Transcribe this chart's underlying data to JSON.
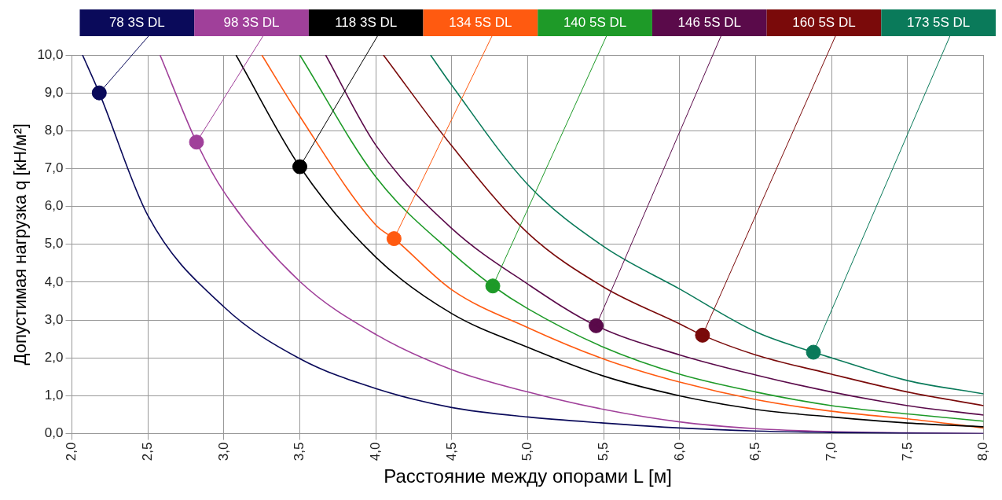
{
  "chart_data": {
    "type": "line",
    "xlabel": "Расстояние между опорами L [м]",
    "ylabel": "Допустимая нагрузка q [кН/м²]",
    "xlim": [
      2,
      8
    ],
    "xticks": [
      {
        "value": 2,
        "label": "2,0"
      },
      {
        "value": 2.5,
        "label": "2,5"
      },
      {
        "value": 3,
        "label": "3,0"
      },
      {
        "value": 3.5,
        "label": "3,5"
      },
      {
        "value": 4,
        "label": "4,0"
      },
      {
        "value": 4.5,
        "label": "4,5"
      },
      {
        "value": 5,
        "label": "5,0"
      },
      {
        "value": 5.5,
        "label": "5,5"
      },
      {
        "value": 6,
        "label": "6,0"
      },
      {
        "value": 6.5,
        "label": "6,5"
      },
      {
        "value": 7,
        "label": "7,0"
      },
      {
        "value": 7.5,
        "label": "7,5"
      },
      {
        "value": 8,
        "label": "8,0"
      }
    ],
    "ylim": [
      0,
      10
    ],
    "yticks": [
      {
        "value": 0,
        "label": "0,0"
      },
      {
        "value": 1,
        "label": "1,0"
      },
      {
        "value": 2,
        "label": "2,0"
      },
      {
        "value": 3,
        "label": "3,0"
      },
      {
        "value": 4,
        "label": "4,0"
      },
      {
        "value": 5,
        "label": "5,0"
      },
      {
        "value": 6,
        "label": "6,0"
      },
      {
        "value": 7,
        "label": "7,0"
      },
      {
        "value": 8,
        "label": "8,0"
      },
      {
        "value": 9,
        "label": "9,0"
      },
      {
        "value": 10,
        "label": "10,0"
      }
    ],
    "grid": true,
    "legend": "top",
    "marker": "none",
    "line_style": "solid",
    "series": [
      {
        "name": "78 3S DL",
        "color": "#0a0a5a",
        "x": [
          2.07,
          2.18,
          2.5,
          3.0,
          3.5,
          4.0,
          4.5,
          5.0,
          5.5,
          6.0,
          6.5,
          7.0,
          7.5,
          8.0
        ],
        "values": [
          10,
          9.0,
          5.76,
          3.35,
          1.98,
          1.19,
          0.69,
          0.44,
          0.28,
          0.15,
          0.07,
          0.03,
          0.01,
          0
        ]
      },
      {
        "name": "98 3S DL",
        "color": "#a0409a",
        "x": [
          2.58,
          2.82,
          3.0,
          3.5,
          4.0,
          4.5,
          5.0,
          5.5,
          6.0,
          6.5,
          7.0,
          7.5,
          8.0
        ],
        "values": [
          10,
          7.7,
          6.39,
          4.02,
          2.62,
          1.69,
          1.1,
          0.64,
          0.31,
          0.13,
          0.05,
          0.02,
          0
        ]
      },
      {
        "name": "118 3S DL",
        "color": "#000000",
        "x": [
          3.08,
          3.5,
          4.0,
          4.5,
          5.0,
          5.5,
          6.0,
          6.5,
          7.0,
          7.5,
          8.0
        ],
        "values": [
          10,
          7.05,
          4.66,
          3.17,
          2.28,
          1.52,
          1.0,
          0.64,
          0.44,
          0.28,
          0.18
        ]
      },
      {
        "name": "134 5S DL",
        "color": "#ff5a10",
        "x": [
          3.25,
          3.5,
          4.0,
          4.12,
          4.5,
          5.0,
          5.5,
          6.0,
          6.5,
          7.0,
          7.5,
          8.0
        ],
        "values": [
          10,
          8.38,
          5.51,
          5.15,
          3.8,
          2.8,
          1.97,
          1.36,
          0.9,
          0.59,
          0.39,
          0.15
        ]
      },
      {
        "name": "140 5S DL",
        "color": "#1e9a28",
        "x": [
          3.5,
          4.0,
          4.5,
          4.77,
          5.0,
          5.5,
          6.0,
          6.5,
          7.0,
          7.5,
          8.0
        ],
        "values": [
          10,
          6.78,
          4.78,
          3.9,
          3.3,
          2.28,
          1.57,
          1.1,
          0.74,
          0.52,
          0.33
        ]
      },
      {
        "name": "146 5S DL",
        "color": "#5a0a4a",
        "x": [
          3.67,
          4.0,
          4.5,
          5.0,
          5.45,
          6.0,
          6.5,
          7.0,
          7.5,
          8.0
        ],
        "values": [
          10,
          7.62,
          5.42,
          3.95,
          2.85,
          2.08,
          1.55,
          1.1,
          0.74,
          0.49
        ]
      },
      {
        "name": "160 5S DL",
        "color": "#7a0a0a",
        "x": [
          4.05,
          4.5,
          5.0,
          5.5,
          6.0,
          6.15,
          6.5,
          7.0,
          7.5,
          8.0
        ],
        "values": [
          10,
          7.6,
          5.3,
          3.87,
          2.9,
          2.6,
          2.08,
          1.57,
          1.1,
          0.74
        ]
      },
      {
        "name": "173 5S DL",
        "color": "#0a7a5a",
        "x": [
          4.36,
          4.5,
          5.0,
          5.5,
          6.0,
          6.5,
          6.88,
          7.0,
          7.5,
          8.0
        ],
        "values": [
          10,
          9.2,
          6.58,
          4.94,
          3.82,
          2.69,
          2.15,
          2.0,
          1.4,
          1.05
        ]
      },
      {
        "type": "scatter",
        "marker": "circle",
        "color": "#0a0a5a",
        "x": [
          2.18
        ],
        "values": [
          9.0
        ]
      },
      {
        "type": "scatter",
        "marker": "circle",
        "color": "#a0409a",
        "x": [
          2.82
        ],
        "values": [
          7.7
        ]
      },
      {
        "type": "scatter",
        "marker": "circle",
        "color": "#000000",
        "x": [
          3.5
        ],
        "values": [
          7.05
        ]
      },
      {
        "type": "scatter",
        "marker": "circle",
        "color": "#ff5a10",
        "x": [
          4.12
        ],
        "values": [
          5.15
        ]
      },
      {
        "type": "scatter",
        "marker": "circle",
        "color": "#1e9a28",
        "x": [
          4.77
        ],
        "values": [
          3.9
        ]
      },
      {
        "type": "scatter",
        "marker": "circle",
        "color": "#5a0a4a",
        "x": [
          5.45
        ],
        "values": [
          2.85
        ]
      },
      {
        "type": "scatter",
        "marker": "circle",
        "color": "#7a0a0a",
        "x": [
          6.15
        ],
        "values": [
          2.6
        ]
      },
      {
        "type": "scatter",
        "marker": "circle",
        "color": "#0a7a5a",
        "x": [
          6.88
        ],
        "values": [
          2.15
        ]
      }
    ]
  }
}
